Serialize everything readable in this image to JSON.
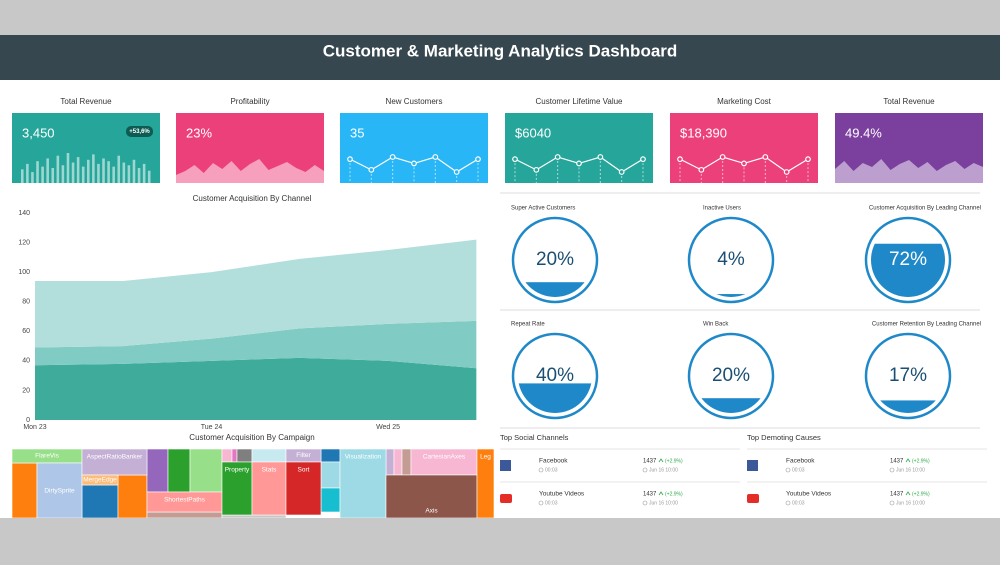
{
  "header": {
    "title": "Customer & Marketing Analytics Dashboard"
  },
  "kpis": [
    {
      "title": "Total Revenue",
      "value": "3,450",
      "badge": "+53,6%",
      "color": "#26a69a",
      "spark": {
        "type": "bars",
        "values": [
          10,
          14,
          8,
          16,
          12,
          18,
          11,
          20,
          13,
          22,
          15,
          19,
          12,
          17,
          21,
          14,
          18,
          16,
          12,
          20,
          15,
          13,
          17,
          11,
          14,
          9
        ]
      }
    },
    {
      "title": "Profitability",
      "value": "23%",
      "color": "#ec407a",
      "spark": {
        "type": "area",
        "values": [
          8,
          12,
          18,
          10,
          20,
          14,
          22,
          12,
          19,
          24,
          13,
          17,
          21,
          15,
          11,
          18,
          12
        ]
      }
    },
    {
      "title": "New Customers",
      "value": "35",
      "color": "#29b6f6",
      "spark": {
        "type": "line",
        "values": [
          8,
          3,
          9,
          6,
          9,
          2,
          8
        ]
      }
    },
    {
      "title": "Customer Lifetime Value",
      "value": "$6040",
      "color": "#26a69a",
      "spark": {
        "type": "line",
        "values": [
          8,
          3,
          9,
          6,
          9,
          2,
          8
        ]
      }
    },
    {
      "title": "Marketing Cost",
      "value": "$18,390",
      "color": "#ec407a",
      "spark": {
        "type": "line",
        "values": [
          8,
          3,
          9,
          6,
          9,
          2,
          8
        ]
      }
    },
    {
      "title": "Total Revenue",
      "value": "49.4%",
      "color": "#7b3f9e",
      "spark": {
        "type": "area",
        "values": [
          14,
          22,
          12,
          20,
          16,
          24,
          13,
          19,
          23,
          15,
          21,
          12,
          18,
          22,
          14,
          20,
          16
        ]
      }
    }
  ],
  "channel_chart": {
    "type": "area",
    "title": "Customer Acquisition By Channel",
    "categories": [
      "Mon 23",
      null,
      "Tue 24",
      null,
      "Wed 25",
      null
    ],
    "series": [
      {
        "color": "#3fab9b",
        "values": [
          37,
          38,
          40,
          42,
          40,
          35
        ]
      },
      {
        "color": "#80cbc4",
        "values": [
          12,
          12,
          15,
          20,
          25,
          32
        ]
      },
      {
        "color": "#b2dfdb",
        "values": [
          45,
          44,
          45,
          47,
          50,
          55
        ]
      }
    ],
    "ylim": [
      0,
      140
    ],
    "yticks": [
      0,
      20,
      40,
      60,
      80,
      100,
      120,
      140
    ],
    "stacked": true
  },
  "gauges": {
    "color": "#1e88c8",
    "items": [
      {
        "title": "Super Active Customers",
        "value": 20,
        "value_label": "20%"
      },
      {
        "title": "Inactive Users",
        "value": 4,
        "value_label": "4%"
      },
      {
        "title": "Customer Acquisition By Leading Channel",
        "value": 72,
        "value_label": "72%"
      },
      {
        "title": "Repeat Rate",
        "value": 40,
        "value_label": "40%"
      },
      {
        "title": "Win Back",
        "value": 20,
        "value_label": "20%"
      },
      {
        "title": "Customer Retention By Leading Channel",
        "value": 17,
        "value_label": "17%"
      }
    ]
  },
  "campaign_chart": {
    "title": "Customer Acquisition By Campaign",
    "items": [
      {
        "label": "FlareVis",
        "color": "#98df8a"
      },
      {
        "label": "DirtySprite",
        "color": "#aec7e8"
      },
      {
        "label": "AspectRatioBanker",
        "color": "#c5b0d5"
      },
      {
        "label": "MergeEdge",
        "color": "#ffbb78"
      },
      {
        "label": "ShortestPaths",
        "color": "#ff9896"
      },
      {
        "label": "Property",
        "color": "#2ca02c"
      },
      {
        "label": "Stats",
        "color": "#ff9896"
      },
      {
        "label": "Filter",
        "color": "#c5b0d5"
      },
      {
        "label": "Sort",
        "color": "#d62728"
      },
      {
        "label": "Visualization",
        "color": "#9edae5"
      },
      {
        "label": "CartesianAxes",
        "color": "#f7b6d2"
      },
      {
        "label": "Axis",
        "color": "#8c564b"
      },
      {
        "label": "Leg",
        "color": "#ff7f0e"
      }
    ]
  },
  "lists": [
    {
      "title": "Top Social Channels",
      "rows": [
        {
          "name": "Facebook",
          "time": "00:03",
          "count": "1437",
          "change": "(+2.9%)",
          "date": "Jun 16 10:00"
        },
        {
          "name": "Youtube Videos",
          "time": "00:03",
          "count": "1437",
          "change": "(+2.9%)",
          "date": "Jun 16 10:00"
        }
      ]
    },
    {
      "title": "Top Demoting Causes",
      "rows": [
        {
          "name": "Facebook",
          "time": "00:03",
          "count": "1437",
          "change": "(+2.9%)",
          "date": "Jun 16 10:00"
        },
        {
          "name": "Youtube Videos",
          "time": "00:03",
          "count": "1437",
          "change": "(+2.9%)",
          "date": "Jun 16 10:00"
        }
      ]
    }
  ]
}
